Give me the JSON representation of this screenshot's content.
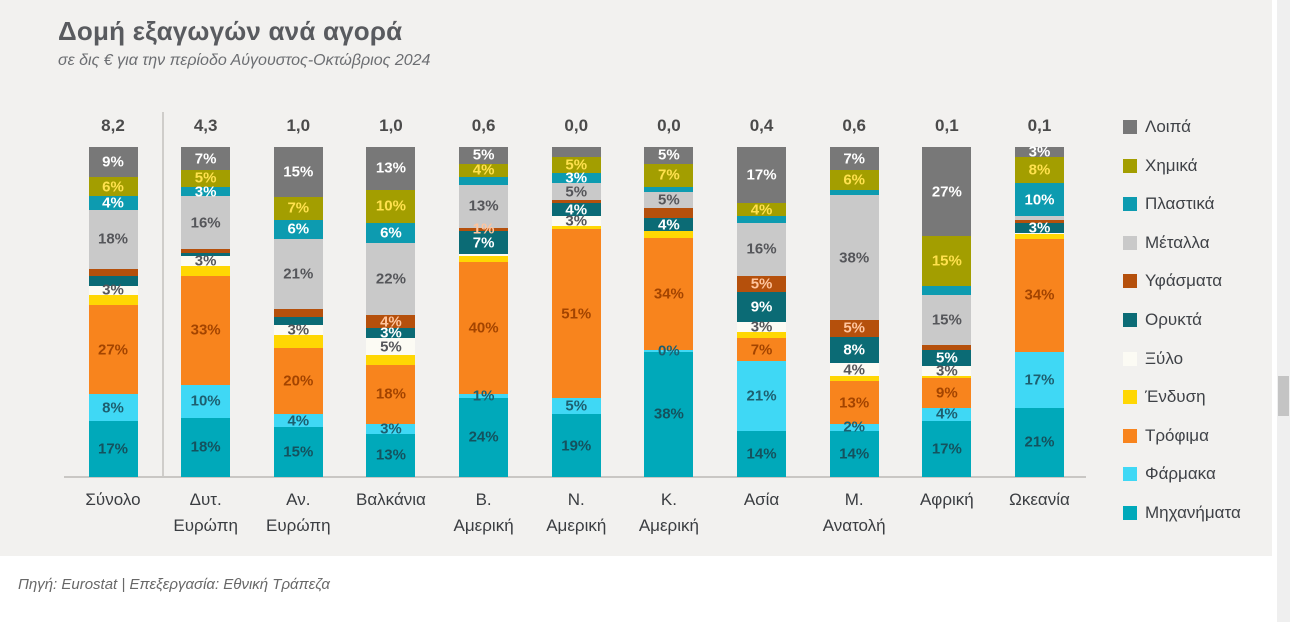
{
  "title": "Δομή εξαγωγών ανά αγορά",
  "subtitle": "σε δις € για την περίοδο Αύγουστος-Οκτώβριος 2024",
  "footer": "Πηγή: Eurostat | Επεξεργασία: Εθνική Τράπεζα",
  "chart_data": {
    "type": "bar",
    "stacked": true,
    "percent_of_total": true,
    "value_note": "segment values are % of each market; number above each bar is exports in €bn",
    "order_top_to_bottom": [
      "loipa",
      "ximika",
      "plastika",
      "metalla",
      "yfasmata",
      "orykta",
      "ksylo",
      "endysi",
      "trofima",
      "farmaka",
      "mixanimata"
    ],
    "legend": [
      {
        "key": "loipa",
        "label": "Λοιπά",
        "color": "#787878",
        "label_color": "#ffffff"
      },
      {
        "key": "ximika",
        "label": "Χημικά",
        "color": "#a39e00",
        "label_color": "#ffe14d"
      },
      {
        "key": "plastika",
        "label": "Πλαστικά",
        "color": "#0d9bb0",
        "label_color": "#ffffff"
      },
      {
        "key": "metalla",
        "label": "Μέταλλα",
        "color": "#c9c9c9",
        "label_color": "#55565a"
      },
      {
        "key": "yfasmata",
        "label": "Υφάσματα",
        "color": "#b5500c",
        "label_color": "#ffc59e"
      },
      {
        "key": "orykta",
        "label": "Ορυκτά",
        "color": "#0b6b75",
        "label_color": "#ffffff"
      },
      {
        "key": "ksylo",
        "label": "Ξύλο",
        "color": "#fcfbf4",
        "label_color": "#55565a"
      },
      {
        "key": "endysi",
        "label": "Ένδυση",
        "color": "#ffd703",
        "label_color": "#55565a"
      },
      {
        "key": "trofima",
        "label": "Τρόφιμα",
        "color": "#f8841d",
        "label_color": "#a34400"
      },
      {
        "key": "farmaka",
        "label": "Φάρμακα",
        "color": "#3fd8f5",
        "label_color": "#1d5f70"
      },
      {
        "key": "mixanimata",
        "label": "Μηχανήματα",
        "color": "#00a9ba",
        "label_color": "#14525e"
      }
    ],
    "categories": [
      {
        "label_lines": [
          "Σύνολο"
        ],
        "total": "8,2",
        "segments": {
          "loipa": {
            "v": 9,
            "label": "9%"
          },
          "ximika": {
            "v": 6,
            "label": "6%"
          },
          "plastika": {
            "v": 4,
            "label": "4%"
          },
          "metalla": {
            "v": 18,
            "label": "18%"
          },
          "yfasmata": {
            "v": 2,
            "label": null
          },
          "orykta": {
            "v": 3,
            "label": null
          },
          "ksylo": {
            "v": 3,
            "label": "3%"
          },
          "endysi": {
            "v": 3,
            "label": null
          },
          "trofima": {
            "v": 27,
            "label": "27%"
          },
          "farmaka": {
            "v": 8,
            "label": "8%"
          },
          "mixanimata": {
            "v": 17,
            "label": "17%"
          }
        }
      },
      {
        "label_lines": [
          "Δυτ.",
          "Ευρώπη"
        ],
        "total": "4,3",
        "segments": {
          "loipa": {
            "v": 7,
            "label": "7%"
          },
          "ximika": {
            "v": 5,
            "label": "5%"
          },
          "plastika": {
            "v": 3,
            "label": "3%"
          },
          "metalla": {
            "v": 16,
            "label": "16%"
          },
          "yfasmata": {
            "v": 1,
            "label": null
          },
          "orykta": {
            "v": 1,
            "label": null
          },
          "ksylo": {
            "v": 3,
            "label": "3%"
          },
          "endysi": {
            "v": 3,
            "label": null
          },
          "trofima": {
            "v": 33,
            "label": "33%"
          },
          "farmaka": {
            "v": 10,
            "label": "10%"
          },
          "mixanimata": {
            "v": 18,
            "label": "18%"
          }
        }
      },
      {
        "label_lines": [
          "Αν.",
          "Ευρώπη"
        ],
        "total": "1,0",
        "segments": {
          "loipa": {
            "v": 15,
            "label": "15%"
          },
          "ximika": {
            "v": 7,
            "label": "7%"
          },
          "plastika": {
            "v": 6,
            "label": "6%"
          },
          "metalla": {
            "v": 21,
            "label": "21%"
          },
          "yfasmata": {
            "v": 2.5,
            "label": null
          },
          "orykta": {
            "v": 2.5,
            "label": null
          },
          "ksylo": {
            "v": 3,
            "label": "3%"
          },
          "endysi": {
            "v": 4,
            "label": null
          },
          "trofima": {
            "v": 20,
            "label": "20%"
          },
          "farmaka": {
            "v": 4,
            "label": "4%"
          },
          "mixanimata": {
            "v": 15,
            "label": "15%"
          }
        }
      },
      {
        "label_lines": [
          "Βαλκάνια"
        ],
        "total": "1,0",
        "segments": {
          "loipa": {
            "v": 13,
            "label": "13%"
          },
          "ximika": {
            "v": 10,
            "label": "10%"
          },
          "plastika": {
            "v": 6,
            "label": "6%"
          },
          "metalla": {
            "v": 22,
            "label": "22%"
          },
          "yfasmata": {
            "v": 4,
            "label": "4%"
          },
          "orykta": {
            "v": 3,
            "label": "3%"
          },
          "ksylo": {
            "v": 5,
            "label": "5%"
          },
          "endysi": {
            "v": 3,
            "label": null
          },
          "trofima": {
            "v": 18,
            "label": "18%"
          },
          "farmaka": {
            "v": 3,
            "label": "3%"
          },
          "mixanimata": {
            "v": 13,
            "label": "13%"
          }
        }
      },
      {
        "label_lines": [
          "Β.",
          "Αμερική"
        ],
        "total": "0,6",
        "segments": {
          "loipa": {
            "v": 5,
            "label": "5%"
          },
          "ximika": {
            "v": 4,
            "label": "4%"
          },
          "plastika": {
            "v": 2.5,
            "label": null
          },
          "metalla": {
            "v": 13,
            "label": "13%"
          },
          "yfasmata": {
            "v": 1,
            "label": "1%"
          },
          "orykta": {
            "v": 7,
            "label": "7%"
          },
          "ksylo": {
            "v": 0.5,
            "label": null
          },
          "endysi": {
            "v": 2,
            "label": null
          },
          "trofima": {
            "v": 40,
            "label": "40%"
          },
          "farmaka": {
            "v": 1,
            "label": "1%"
          },
          "mixanimata": {
            "v": 24,
            "label": "24%"
          }
        }
      },
      {
        "label_lines": [
          "Ν.",
          "Αμερική"
        ],
        "total": "0,0",
        "segments": {
          "loipa": {
            "v": 3,
            "label": null
          },
          "ximika": {
            "v": 5,
            "label": "5%"
          },
          "plastika": {
            "v": 3,
            "label": "3%"
          },
          "metalla": {
            "v": 5,
            "label": "5%"
          },
          "yfasmata": {
            "v": 1,
            "label": null
          },
          "orykta": {
            "v": 4,
            "label": "4%"
          },
          "ksylo": {
            "v": 3,
            "label": "3%"
          },
          "endysi": {
            "v": 1,
            "label": null
          },
          "trofima": {
            "v": 51,
            "label": "51%"
          },
          "farmaka": {
            "v": 5,
            "label": "5%"
          },
          "mixanimata": {
            "v": 19,
            "label": "19%"
          }
        }
      },
      {
        "label_lines": [
          "Κ.",
          "Αμερική"
        ],
        "total": "0,0",
        "segments": {
          "loipa": {
            "v": 5,
            "label": "5%"
          },
          "ximika": {
            "v": 7,
            "label": "7%"
          },
          "plastika": {
            "v": 1.5,
            "label": null
          },
          "metalla": {
            "v": 5,
            "label": "5%"
          },
          "yfasmata": {
            "v": 3,
            "label": null
          },
          "orykta": {
            "v": 4,
            "label": "4%"
          },
          "ksylo": {
            "v": 0,
            "label": null
          },
          "endysi": {
            "v": 2,
            "label": null
          },
          "trofima": {
            "v": 34,
            "label": "34%"
          },
          "farmaka": {
            "v": 0.5,
            "label": "0%"
          },
          "mixanimata": {
            "v": 38,
            "label": "38%"
          }
        }
      },
      {
        "label_lines": [
          "Ασία"
        ],
        "total": "0,4",
        "segments": {
          "loipa": {
            "v": 17,
            "label": "17%"
          },
          "ximika": {
            "v": 4,
            "label": "4%"
          },
          "plastika": {
            "v": 2,
            "label": null
          },
          "metalla": {
            "v": 16,
            "label": "16%"
          },
          "yfasmata": {
            "v": 5,
            "label": "5%"
          },
          "orykta": {
            "v": 9,
            "label": "9%"
          },
          "ksylo": {
            "v": 3,
            "label": "3%"
          },
          "endysi": {
            "v": 2,
            "label": null
          },
          "trofima": {
            "v": 7,
            "label": "7%"
          },
          "farmaka": {
            "v": 21,
            "label": "21%"
          },
          "mixanimata": {
            "v": 14,
            "label": "14%"
          }
        }
      },
      {
        "label_lines": [
          "Μ.",
          "Ανατολή"
        ],
        "total": "0,6",
        "segments": {
          "loipa": {
            "v": 7,
            "label": "7%"
          },
          "ximika": {
            "v": 6,
            "label": "6%"
          },
          "plastika": {
            "v": 1.5,
            "label": null
          },
          "metalla": {
            "v": 38,
            "label": "38%"
          },
          "yfasmata": {
            "v": 5,
            "label": "5%"
          },
          "orykta": {
            "v": 8,
            "label": "8%"
          },
          "ksylo": {
            "v": 4,
            "label": "4%"
          },
          "endysi": {
            "v": 1.5,
            "label": null
          },
          "trofima": {
            "v": 13,
            "label": "13%"
          },
          "farmaka": {
            "v": 2,
            "label": "2%"
          },
          "mixanimata": {
            "v": 14,
            "label": "14%"
          }
        }
      },
      {
        "label_lines": [
          "Αφρική"
        ],
        "total": "0,1",
        "segments": {
          "loipa": {
            "v": 27,
            "label": "27%"
          },
          "ximika": {
            "v": 15,
            "label": "15%"
          },
          "plastika": {
            "v": 3,
            "label": null
          },
          "metalla": {
            "v": 15,
            "label": "15%"
          },
          "yfasmata": {
            "v": 1.5,
            "label": null
          },
          "orykta": {
            "v": 5,
            "label": "5%"
          },
          "ksylo": {
            "v": 3,
            "label": "3%"
          },
          "endysi": {
            "v": 0.5,
            "label": null
          },
          "trofima": {
            "v": 9,
            "label": "9%"
          },
          "farmaka": {
            "v": 4,
            "label": "4%"
          },
          "mixanimata": {
            "v": 17,
            "label": "17%"
          }
        }
      },
      {
        "label_lines": [
          "Ωκεανία"
        ],
        "total": "0,1",
        "segments": {
          "loipa": {
            "v": 3,
            "label": "3%"
          },
          "ximika": {
            "v": 8,
            "label": "8%"
          },
          "plastika": {
            "v": 10,
            "label": "10%"
          },
          "metalla": {
            "v": 1,
            "label": null
          },
          "yfasmata": {
            "v": 1,
            "label": null
          },
          "orykta": {
            "v": 3,
            "label": "3%"
          },
          "ksylo": {
            "v": 0.5,
            "label": null
          },
          "endysi": {
            "v": 1.5,
            "label": null
          },
          "trofima": {
            "v": 34,
            "label": "34%"
          },
          "farmaka": {
            "v": 17,
            "label": "17%"
          },
          "mixanimata": {
            "v": 21,
            "label": "21%"
          }
        }
      }
    ]
  }
}
